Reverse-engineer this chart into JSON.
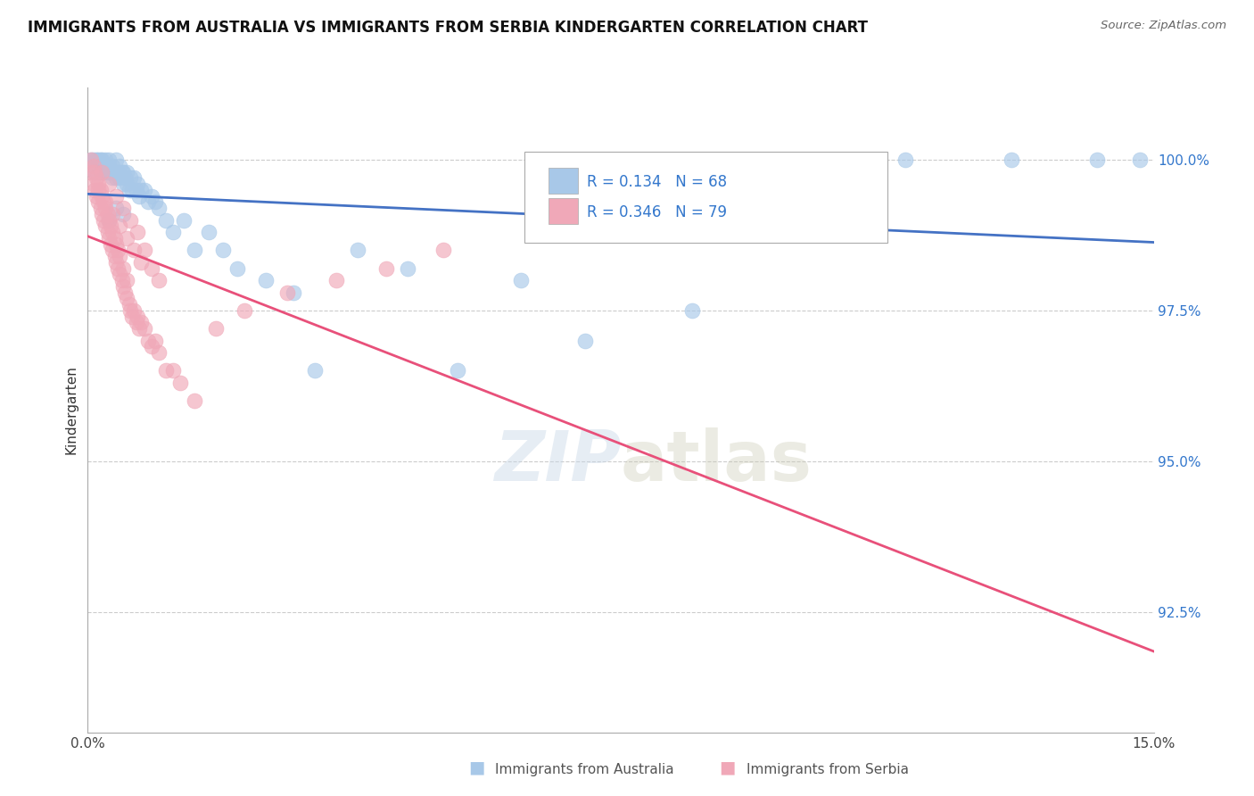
{
  "title": "IMMIGRANTS FROM AUSTRALIA VS IMMIGRANTS FROM SERBIA KINDERGARTEN CORRELATION CHART",
  "source_text": "Source: ZipAtlas.com",
  "ylabel": "Kindergarten",
  "xmin": 0.0,
  "xmax": 15.0,
  "ymin": 90.5,
  "ymax": 101.2,
  "yticks": [
    92.5,
    95.0,
    97.5,
    100.0
  ],
  "xticks": [
    0.0,
    3.0,
    6.0,
    9.0,
    12.0,
    15.0
  ],
  "xtick_labels": [
    "0.0%",
    "",
    "",
    "",
    "",
    "15.0%"
  ],
  "ytick_labels": [
    "92.5%",
    "95.0%",
    "97.5%",
    "100.0%"
  ],
  "australia_color": "#a8c8e8",
  "serbia_color": "#f0a8b8",
  "australia_R": 0.134,
  "australia_N": 68,
  "serbia_R": 0.346,
  "serbia_N": 79,
  "trend_australia_color": "#4472c4",
  "trend_serbia_color": "#e8507a",
  "australia_x": [
    0.05,
    0.08,
    0.1,
    0.12,
    0.15,
    0.15,
    0.18,
    0.18,
    0.2,
    0.2,
    0.22,
    0.25,
    0.25,
    0.28,
    0.3,
    0.3,
    0.32,
    0.35,
    0.35,
    0.38,
    0.4,
    0.4,
    0.42,
    0.45,
    0.45,
    0.48,
    0.5,
    0.5,
    0.52,
    0.55,
    0.55,
    0.58,
    0.6,
    0.62,
    0.65,
    0.68,
    0.7,
    0.72,
    0.75,
    0.8,
    0.85,
    0.9,
    0.95,
    1.0,
    1.1,
    1.2,
    1.35,
    1.5,
    1.7,
    1.9,
    2.1,
    2.5,
    2.9,
    3.2,
    3.8,
    4.5,
    5.2,
    6.1,
    7.0,
    8.5,
    10.0,
    11.5,
    13.0,
    14.2,
    14.8,
    0.3,
    0.4,
    0.5
  ],
  "australia_y": [
    100.0,
    100.0,
    99.8,
    100.0,
    99.9,
    100.0,
    99.8,
    100.0,
    99.9,
    100.0,
    99.8,
    99.9,
    100.0,
    99.8,
    99.9,
    100.0,
    99.8,
    99.7,
    99.9,
    99.8,
    99.7,
    100.0,
    99.8,
    99.7,
    99.9,
    99.8,
    99.6,
    99.8,
    99.7,
    99.6,
    99.8,
    99.5,
    99.7,
    99.5,
    99.7,
    99.5,
    99.6,
    99.4,
    99.5,
    99.5,
    99.3,
    99.4,
    99.3,
    99.2,
    99.0,
    98.8,
    99.0,
    98.5,
    98.8,
    98.5,
    98.2,
    98.0,
    97.8,
    96.5,
    98.5,
    98.2,
    96.5,
    98.0,
    97.0,
    97.5,
    99.5,
    100.0,
    100.0,
    100.0,
    100.0,
    99.0,
    99.2,
    99.1
  ],
  "serbia_x": [
    0.05,
    0.05,
    0.08,
    0.08,
    0.1,
    0.1,
    0.12,
    0.12,
    0.15,
    0.15,
    0.18,
    0.18,
    0.2,
    0.2,
    0.22,
    0.22,
    0.25,
    0.25,
    0.28,
    0.28,
    0.3,
    0.3,
    0.32,
    0.32,
    0.35,
    0.35,
    0.38,
    0.38,
    0.4,
    0.4,
    0.42,
    0.42,
    0.45,
    0.45,
    0.48,
    0.5,
    0.5,
    0.52,
    0.55,
    0.55,
    0.58,
    0.6,
    0.62,
    0.65,
    0.68,
    0.7,
    0.72,
    0.75,
    0.8,
    0.85,
    0.9,
    0.95,
    1.0,
    1.1,
    1.2,
    1.3,
    1.5,
    1.8,
    2.2,
    2.8,
    3.5,
    4.2,
    5.0,
    0.15,
    0.2,
    0.25,
    0.3,
    0.35,
    0.4,
    0.45,
    0.5,
    0.55,
    0.6,
    0.65,
    0.7,
    0.75,
    0.8,
    0.9,
    1.0
  ],
  "serbia_y": [
    99.8,
    100.0,
    99.6,
    99.9,
    99.5,
    99.8,
    99.4,
    99.7,
    99.3,
    99.6,
    99.2,
    99.5,
    99.1,
    99.4,
    99.0,
    99.3,
    98.9,
    99.2,
    98.8,
    99.1,
    98.7,
    99.0,
    98.6,
    98.9,
    98.5,
    98.8,
    98.4,
    98.7,
    98.3,
    98.6,
    98.2,
    98.5,
    98.1,
    98.4,
    98.0,
    97.9,
    98.2,
    97.8,
    97.7,
    98.0,
    97.6,
    97.5,
    97.4,
    97.5,
    97.3,
    97.4,
    97.2,
    97.3,
    97.2,
    97.0,
    96.9,
    97.0,
    96.8,
    96.5,
    96.5,
    96.3,
    96.0,
    97.2,
    97.5,
    97.8,
    98.0,
    98.2,
    98.5,
    99.5,
    99.8,
    99.3,
    99.6,
    99.1,
    99.4,
    98.9,
    99.2,
    98.7,
    99.0,
    98.5,
    98.8,
    98.3,
    98.5,
    98.2,
    98.0
  ]
}
